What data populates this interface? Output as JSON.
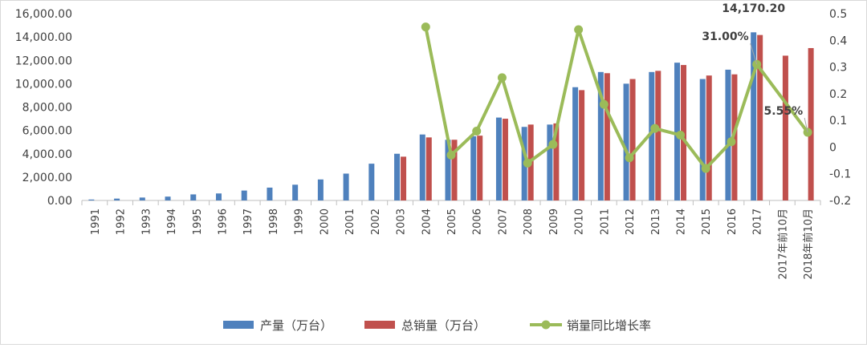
{
  "chart_data": {
    "type": "bar",
    "categories": [
      "1991",
      "1992",
      "1993",
      "1994",
      "1995",
      "1996",
      "1997",
      "1998",
      "1999",
      "2000",
      "2001",
      "2002",
      "2003",
      "2004",
      "2005",
      "2006",
      "2007",
      "2008",
      "2009",
      "2010",
      "2011",
      "2012",
      "2013",
      "2014",
      "2015",
      "2016",
      "2017",
      "2017年前10月",
      "2018年前10月"
    ],
    "series": [
      {
        "name": "产量（万台）",
        "kind": "bar",
        "axis": "left",
        "color": "#4F81BD",
        "values": [
          80,
          160,
          250,
          330,
          520,
          600,
          850,
          1100,
          1350,
          1800,
          2300,
          3150,
          4000,
          5650,
          5200,
          5500,
          7100,
          6300,
          6500,
          9700,
          11000,
          10000,
          11000,
          11800,
          10400,
          11200,
          14400,
          null,
          null
        ]
      },
      {
        "name": "总销量（万台）",
        "kind": "bar",
        "axis": "left",
        "color": "#C0504D",
        "values": [
          null,
          null,
          null,
          null,
          null,
          null,
          null,
          null,
          null,
          null,
          null,
          null,
          3750,
          5400,
          5200,
          5550,
          7000,
          6500,
          6600,
          9450,
          10900,
          10400,
          11100,
          11600,
          10700,
          10800,
          14170.2,
          12400,
          13050
        ]
      },
      {
        "name": "销量同比增长率",
        "kind": "line",
        "axis": "right",
        "color": "#9BBB59",
        "values": [
          null,
          null,
          null,
          null,
          null,
          null,
          null,
          null,
          null,
          null,
          null,
          null,
          null,
          0.45,
          -0.03,
          0.06,
          0.26,
          -0.06,
          0.01,
          0.44,
          0.16,
          -0.04,
          0.07,
          0.045,
          -0.08,
          0.02,
          0.31,
          null,
          0.0555
        ]
      }
    ],
    "y_left": {
      "min": 0,
      "max": 16000,
      "step": 2000,
      "tick_labels": [
        "0.00",
        "2,000.00",
        "4,000.00",
        "6,000.00",
        "8,000.00",
        "10,000.00",
        "12,000.00",
        "14,000.00",
        "16,000.00"
      ]
    },
    "y_right": {
      "min": -0.2,
      "max": 0.5,
      "step": 0.1,
      "tick_labels": [
        "-0.2",
        "-0.1",
        "0",
        "0.1",
        "0.2",
        "0.3",
        "0.4",
        "0.5"
      ]
    },
    "annotations": [
      {
        "text": "14,170.20",
        "category_index": 26,
        "series": 1
      },
      {
        "text": "31.00%",
        "category_index": 26,
        "series": 2
      },
      {
        "text": "5.55%",
        "category_index": 28,
        "series": 2
      }
    ],
    "legend_position": "bottom",
    "grid": false
  }
}
